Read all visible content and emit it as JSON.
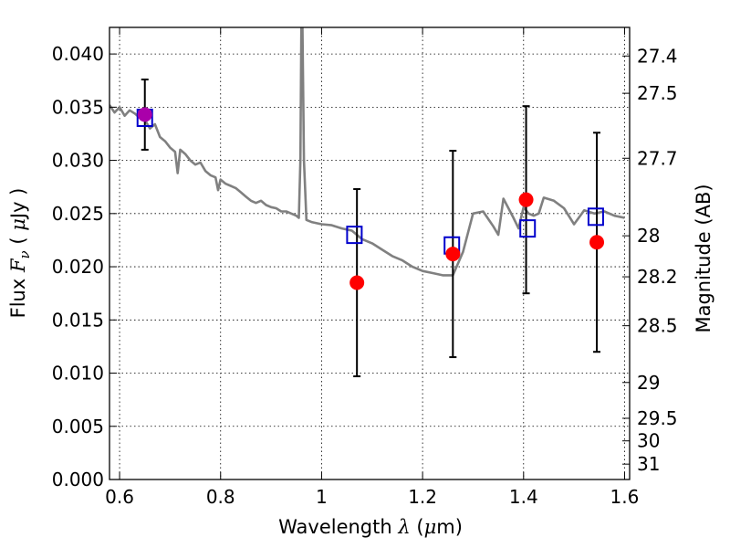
{
  "chart_data": {
    "type": "line",
    "xlabel_text": "Wavelength",
    "xlabel_symbol": "λ",
    "xlabel_unit_open": "(",
    "xlabel_unit_mu": "μ",
    "xlabel_unit_rest": "m)",
    "ylabel_text": "Flux",
    "ylabel_symbol": "F",
    "ylabel_symbol_sub": "ν",
    "ylabel_unit_open": "(",
    "ylabel_unit_mu": "μ",
    "ylabel_unit_rest": "Jy )",
    "y2label": "Magnitude (AB)",
    "xlim": [
      0.58,
      1.61
    ],
    "ylim": [
      0.0,
      0.0425
    ],
    "grid": true,
    "xticks": [
      0.6,
      0.8,
      1.0,
      1.2,
      1.4,
      1.6
    ],
    "xtick_labels": [
      "0.6",
      "0.8",
      "1",
      "1.2",
      "1.4",
      "1.6"
    ],
    "yticks": [
      0.0,
      0.005,
      0.01,
      0.015,
      0.02,
      0.025,
      0.03,
      0.035,
      0.04
    ],
    "ytick_labels": [
      "0.000",
      "0.005",
      "0.010",
      "0.015",
      "0.020",
      "0.025",
      "0.030",
      "0.035",
      "0.040"
    ],
    "y2ticks": [
      27.4,
      27.5,
      27.7,
      28.0,
      28.2,
      28.5,
      29.0,
      29.5,
      30.0,
      31.0
    ],
    "y2tick_labels": [
      "27.4",
      "27.5",
      "27.7",
      "28",
      "28.2",
      "28.5",
      "29",
      "29.5",
      "30",
      "31"
    ],
    "colors": {
      "model": "#808080",
      "observed": "#ff0000",
      "synthetic": "#0000cc",
      "overlap": "#aa00aa",
      "errorbar": "#000000"
    },
    "series": [
      {
        "x": [
          0.58,
          0.59,
          0.6,
          0.61,
          0.62,
          0.63,
          0.64,
          0.65,
          0.66,
          0.67,
          0.68,
          0.69,
          0.7,
          0.71,
          0.715,
          0.72,
          0.73,
          0.74,
          0.75,
          0.76,
          0.77,
          0.78,
          0.79,
          0.795,
          0.8,
          0.81,
          0.82,
          0.83,
          0.84,
          0.85,
          0.86,
          0.87,
          0.88,
          0.89,
          0.9,
          0.91,
          0.92,
          0.93,
          0.94,
          0.95,
          0.955,
          0.958,
          0.96,
          0.962,
          0.965,
          0.97,
          0.98,
          1.0,
          1.02,
          1.04,
          1.06,
          1.08,
          1.1,
          1.12,
          1.14,
          1.16,
          1.18,
          1.2,
          1.22,
          1.24,
          1.26,
          1.28,
          1.3,
          1.32,
          1.33,
          1.34,
          1.35,
          1.36,
          1.37,
          1.38,
          1.39,
          1.4,
          1.41,
          1.42,
          1.43,
          1.44,
          1.46,
          1.48,
          1.5,
          1.52,
          1.54,
          1.56,
          1.58,
          1.6
        ],
        "y": [
          0.0352,
          0.0345,
          0.035,
          0.0342,
          0.0347,
          0.0344,
          0.034,
          0.0338,
          0.033,
          0.0334,
          0.0322,
          0.0318,
          0.0312,
          0.0308,
          0.0288,
          0.031,
          0.0306,
          0.03,
          0.0296,
          0.0298,
          0.029,
          0.0286,
          0.0284,
          0.0272,
          0.0282,
          0.0278,
          0.0276,
          0.0274,
          0.027,
          0.0266,
          0.0262,
          0.026,
          0.0262,
          0.0258,
          0.0256,
          0.0255,
          0.0252,
          0.0252,
          0.025,
          0.0248,
          0.0246,
          0.03,
          0.043,
          0.043,
          0.03,
          0.0244,
          0.0242,
          0.024,
          0.0239,
          0.0236,
          0.0234,
          0.0226,
          0.0222,
          0.0216,
          0.021,
          0.0206,
          0.02,
          0.0196,
          0.0194,
          0.0192,
          0.0192,
          0.0214,
          0.025,
          0.0252,
          0.0245,
          0.0238,
          0.023,
          0.0264,
          0.0255,
          0.0246,
          0.0236,
          0.0256,
          0.025,
          0.0248,
          0.025,
          0.0265,
          0.0262,
          0.0255,
          0.024,
          0.0253,
          0.025,
          0.0252,
          0.0248,
          0.0246
        ]
      },
      {
        "x": [
          0.65,
          1.07,
          1.26,
          1.405,
          1.545
        ],
        "y": [
          0.0343,
          0.0185,
          0.0212,
          0.0263,
          0.0223
        ],
        "yerr": [
          0.0033,
          0.0088,
          0.0097,
          0.0088,
          0.0103
        ]
      },
      {
        "x": [
          0.65,
          1.065,
          1.258,
          1.408,
          1.543
        ],
        "y": [
          0.034,
          0.023,
          0.022,
          0.0236,
          0.0247
        ]
      }
    ]
  }
}
